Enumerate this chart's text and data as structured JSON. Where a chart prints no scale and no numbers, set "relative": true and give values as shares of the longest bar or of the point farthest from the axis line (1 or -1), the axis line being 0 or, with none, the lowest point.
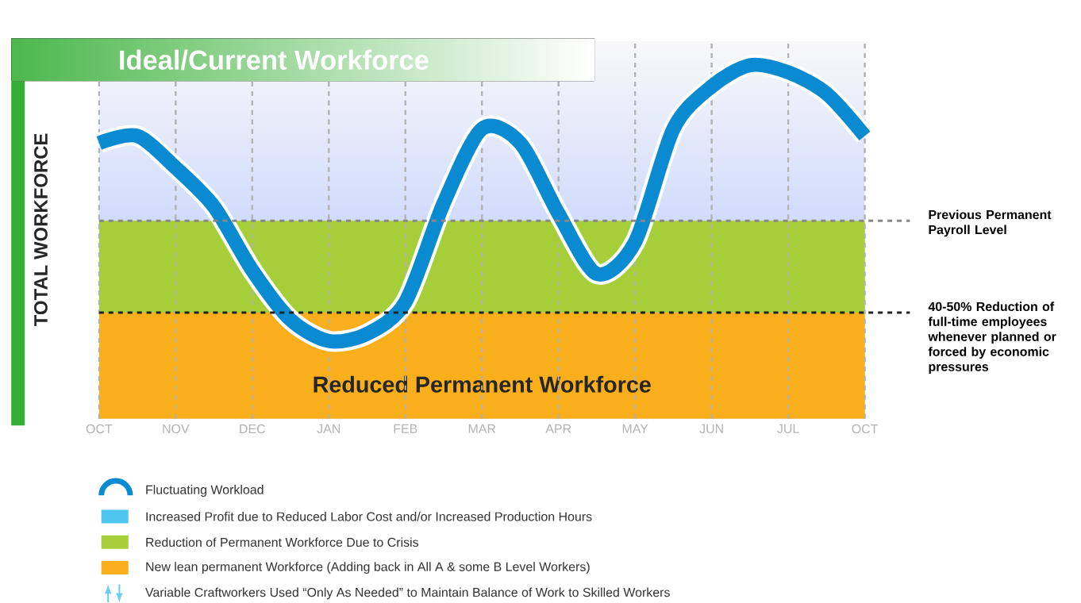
{
  "chart_data": {
    "type": "line",
    "title": "Ideal/Current Workforce",
    "ylabel": "TOTAL WORKFORCE",
    "relative": true,
    "categories": [
      "OCT",
      null,
      "NOV",
      null,
      "DEC",
      null,
      "JAN",
      null,
      "FEB",
      null,
      "MAR",
      null,
      "APR",
      null,
      "MAY",
      null,
      "JUN",
      null,
      "JUL",
      null,
      "OCT"
    ],
    "grid": "x",
    "series": [
      {
        "name": "Fluctuating Workload",
        "color": "#0a8ad0",
        "values": [
          0.78,
          0.8,
          0.71,
          0.6,
          0.42,
          0.28,
          0.22,
          0.24,
          0.33,
          0.61,
          0.82,
          0.78,
          0.58,
          0.41,
          0.5,
          0.82,
          0.94,
          1.0,
          0.98,
          0.92,
          0.8
        ]
      }
    ],
    "bands": [
      {
        "axis": "y",
        "from": 0,
        "to": 0.3,
        "label": "Reduced Permanent Workforce",
        "color": "#f9ae1b"
      },
      {
        "axis": "y",
        "from": 0.3,
        "to": 0.56,
        "color": "#a6ce39"
      }
    ],
    "ref_lines": [
      {
        "axis": "y",
        "value": 0.56,
        "label": "Previous Permanent Payroll Level",
        "color": "#888888",
        "line_style": "dashed"
      },
      {
        "axis": "y",
        "value": 0.3,
        "label": "40-50% Reduction of full-time employees whenever planned or forced by economic pressures",
        "color": "#222222",
        "line_style": "dashed"
      }
    ],
    "legend": "bottom",
    "annotations": [
      "Increased Profit due to Reduced Labor Cost and/or Increased Production Hours",
      "Reduction of Permanent Workforce Due to Crisis",
      "New lean permanent Workforce (Adding back in All A & some B Level Workers)",
      "Variable Craftworkers Used “Only As Needed” to Maintain Balance of Work to Skilled Workers"
    ]
  }
}
